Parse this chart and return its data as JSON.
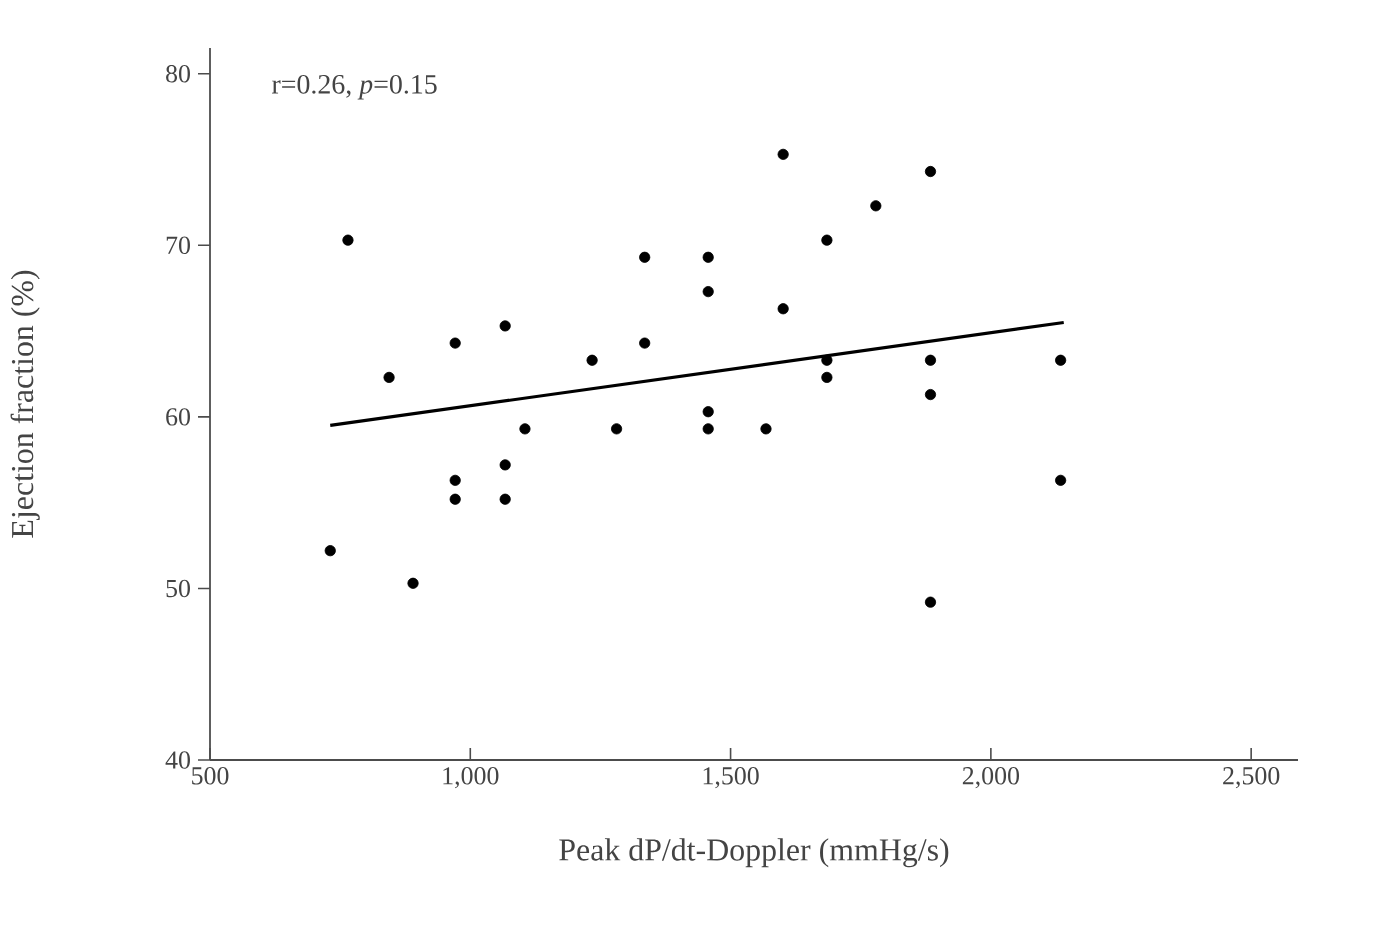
{
  "chart_data": {
    "type": "scatter",
    "xlabel": "Peak dP/dt-Doppler (mmHg/s)",
    "ylabel": "Ejection fraction (%)",
    "annotations": [
      "r=0.26, *p*=0.15"
    ],
    "xlim": [
      500,
      2590
    ],
    "ylim": [
      40,
      81.5
    ],
    "xticks": [
      {
        "value": 500,
        "label": "500"
      },
      {
        "value": 1000,
        "label": "1,000"
      },
      {
        "value": 1500,
        "label": "1,500"
      },
      {
        "value": 2000,
        "label": "2,000"
      },
      {
        "value": 2500,
        "label": "2,500"
      }
    ],
    "yticks": [
      40,
      50,
      60,
      70,
      80
    ],
    "grid": false,
    "series": [
      {
        "marker": "circle",
        "color": "#000000",
        "x": [
          765,
          844,
          731,
          890,
          971,
          971,
          971,
          1067,
          1067,
          1067,
          1105,
          1234,
          1281,
          1335,
          1335,
          1457,
          1457,
          1457,
          1457,
          1568,
          1601,
          1601,
          1685,
          1685,
          1685,
          1779,
          1884,
          1884,
          1884,
          1884,
          2134,
          2134
        ],
        "values": [
          70.3,
          62.3,
          52.2,
          50.3,
          64.3,
          56.3,
          55.2,
          65.3,
          57.2,
          55.2,
          59.3,
          63.3,
          59.3,
          69.3,
          64.3,
          69.3,
          67.3,
          60.3,
          59.3,
          59.3,
          75.3,
          66.3,
          70.3,
          63.3,
          62.3,
          72.3,
          74.3,
          63.3,
          61.3,
          49.2,
          63.3,
          56.3
        ]
      },
      {
        "type": "line",
        "marker": "none",
        "color": "#000000",
        "x": [
          731,
          2140
        ],
        "values": [
          59.5,
          65.5
        ]
      }
    ]
  }
}
